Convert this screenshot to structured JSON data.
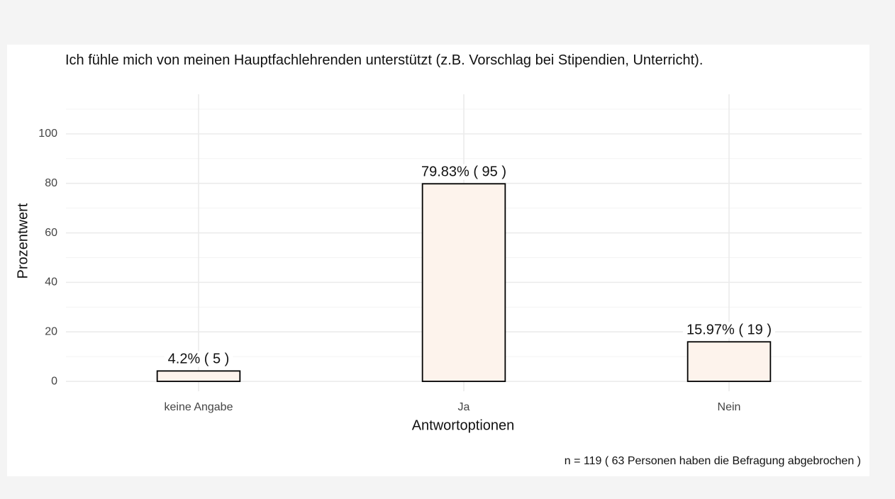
{
  "chart_data": {
    "type": "bar",
    "title": "Ich fühle mich von meinen Hauptfachlehrenden unterstützt (z.B. Vorschlag bei Stipendien, Unterricht).",
    "x_label": "Antwortoptionen",
    "y_label": "Prozentwert",
    "caption": "n =  119  ( 63  Personen haben die Befragung abgebrochen )",
    "categories": [
      "keine Angabe",
      "Ja",
      "Nein"
    ],
    "values": [
      4.2,
      79.83,
      15.97
    ],
    "value_labels": [
      "4.2% ( 5 )",
      "79.83% ( 95 )",
      "15.97% ( 19 )"
    ],
    "color": "#fdf3ec",
    "edge_color": "#000000",
    "ylim": [
      -4,
      116
    ],
    "yticks": [
      0,
      20,
      40,
      60,
      80,
      100
    ],
    "grid": true
  }
}
